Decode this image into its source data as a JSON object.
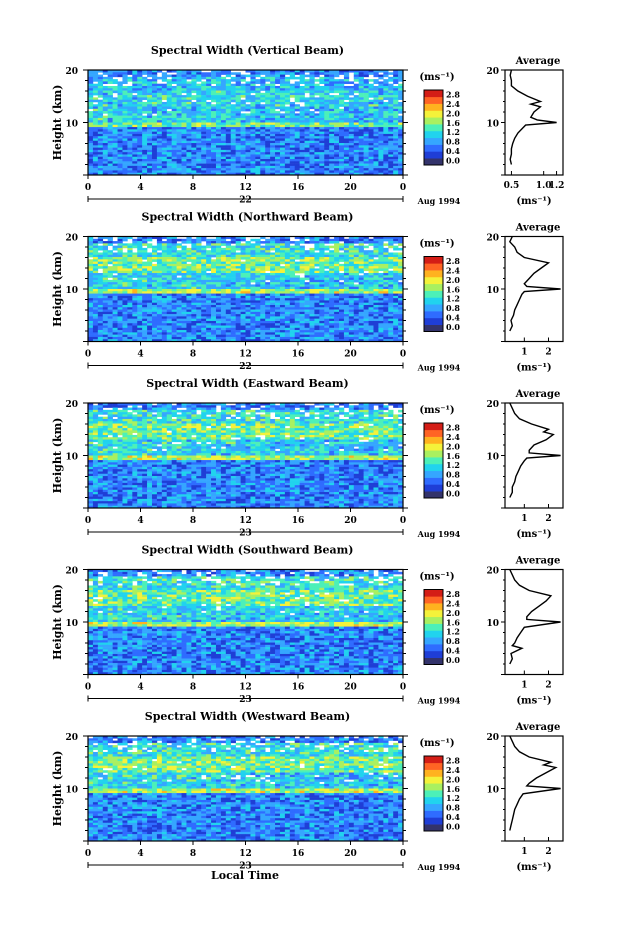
{
  "chart_data": {
    "type": "heatmap",
    "colorbar": {
      "unit_label": "(ms⁻¹)",
      "ticks": [
        "0.0",
        "0.4",
        "0.8",
        "1.2",
        "1.6",
        "2.0",
        "2.4",
        "2.8"
      ],
      "colors": [
        "#33336b",
        "#1f3ed6",
        "#2f6cff",
        "#35a6ff",
        "#21d3ee",
        "#4cf0b8",
        "#a9f060",
        "#f4f23a",
        "#ffb21f",
        "#ff6424",
        "#d41d16"
      ]
    },
    "x_ticks": [
      "0",
      "4",
      "8",
      "12",
      "16",
      "20",
      "0"
    ],
    "ylim": [
      0,
      20
    ],
    "y_ticks": [
      "10",
      "20"
    ],
    "ylabel": "Height (km)",
    "xlabel": "Local Time",
    "avg_title": "Average",
    "avg_xlabel": "(ms⁻¹)",
    "panels": [
      {
        "title": "Spectral Width (Vertical Beam)",
        "day_label": "22",
        "date_label": "Aug 1994",
        "avg_ticks": [
          {
            "v": 0.5,
            "label": "0.5"
          },
          {
            "v": 1.0,
            "label": "1.0"
          },
          {
            "v": 1.2,
            "label": "1.2"
          }
        ],
        "avg_xlim": [
          0.4,
          1.3
        ],
        "average_profile": {
          "heights": [
            2,
            3,
            4,
            5,
            6,
            7,
            8,
            9,
            9.5,
            10,
            10.5,
            11,
            12,
            13,
            13.5,
            14,
            15,
            16,
            17,
            18,
            19,
            20
          ],
          "values": [
            0.5,
            0.48,
            0.5,
            0.5,
            0.52,
            0.55,
            0.6,
            0.68,
            0.72,
            1.2,
            0.9,
            0.8,
            0.85,
            0.95,
            0.8,
            0.95,
            0.75,
            0.6,
            0.5,
            0.5,
            0.48,
            0.5
          ]
        }
      },
      {
        "title": "Spectral Width (Northward Beam)",
        "day_label": "22",
        "date_label": "Aug 1994",
        "avg_ticks": [
          {
            "v": 1,
            "label": "1"
          },
          {
            "v": 2,
            "label": "2"
          }
        ],
        "avg_xlim": [
          0.2,
          2.6
        ],
        "average_profile": {
          "heights": [
            2,
            3,
            4,
            5,
            6,
            7,
            8,
            9,
            9.5,
            10,
            10.5,
            11,
            12,
            13,
            14,
            15,
            16,
            17,
            18,
            19,
            20
          ],
          "values": [
            0.4,
            0.5,
            0.45,
            0.55,
            0.6,
            0.7,
            0.8,
            0.9,
            1.0,
            2.5,
            1.1,
            1.0,
            1.2,
            1.4,
            1.7,
            2.0,
            1.0,
            0.7,
            0.6,
            0.4,
            0.5
          ]
        }
      },
      {
        "title": "Spectral Width (Eastward Beam)",
        "day_label": "23",
        "date_label": "Aug 1994",
        "avg_ticks": [
          {
            "v": 1,
            "label": "1"
          },
          {
            "v": 2,
            "label": "2"
          }
        ],
        "avg_xlim": [
          0.2,
          2.6
        ],
        "average_profile": {
          "heights": [
            2,
            3,
            4,
            5,
            6,
            7,
            8,
            9,
            9.5,
            10,
            10.5,
            11,
            12,
            13,
            14,
            14.5,
            15,
            16,
            17,
            18,
            19,
            20
          ],
          "values": [
            0.4,
            0.5,
            0.5,
            0.6,
            0.65,
            0.75,
            0.85,
            1.0,
            1.1,
            2.5,
            1.2,
            1.2,
            1.4,
            1.9,
            2.2,
            1.8,
            2.0,
            1.3,
            0.8,
            0.6,
            0.5,
            0.4
          ]
        }
      },
      {
        "title": "Spectral Width (Southward Beam)",
        "day_label": "23",
        "date_label": "Aug 1994",
        "avg_ticks": [
          {
            "v": 1,
            "label": "1"
          },
          {
            "v": 2,
            "label": "2"
          }
        ],
        "avg_xlim": [
          0.2,
          2.6
        ],
        "average_profile": {
          "heights": [
            2,
            3,
            4,
            5,
            5.5,
            6,
            7,
            8,
            9,
            10,
            10.5,
            11,
            12,
            13,
            14,
            15,
            16,
            17,
            18,
            19,
            20
          ],
          "values": [
            0.4,
            0.5,
            0.45,
            0.9,
            0.5,
            0.6,
            0.7,
            0.85,
            1.0,
            2.5,
            1.1,
            1.1,
            1.3,
            1.6,
            1.9,
            2.1,
            1.2,
            0.8,
            0.6,
            0.5,
            0.4
          ]
        }
      },
      {
        "title": "Spectral Width (Westward Beam)",
        "day_label": "23",
        "date_label": "Aug 1994",
        "avg_ticks": [
          {
            "v": 1,
            "label": "1"
          },
          {
            "v": 2,
            "label": "2"
          }
        ],
        "avg_xlim": [
          0.2,
          2.6
        ],
        "average_profile": {
          "heights": [
            2,
            3,
            4,
            5,
            6,
            7,
            8,
            9,
            10,
            10.5,
            11,
            12,
            13,
            14,
            14.5,
            15,
            16,
            17,
            18,
            19,
            20
          ],
          "values": [
            0.4,
            0.45,
            0.5,
            0.55,
            0.6,
            0.7,
            0.8,
            0.95,
            2.5,
            1.1,
            1.2,
            1.5,
            1.9,
            2.3,
            1.8,
            2.1,
            1.2,
            0.8,
            0.6,
            0.5,
            0.4
          ]
        }
      }
    ]
  }
}
